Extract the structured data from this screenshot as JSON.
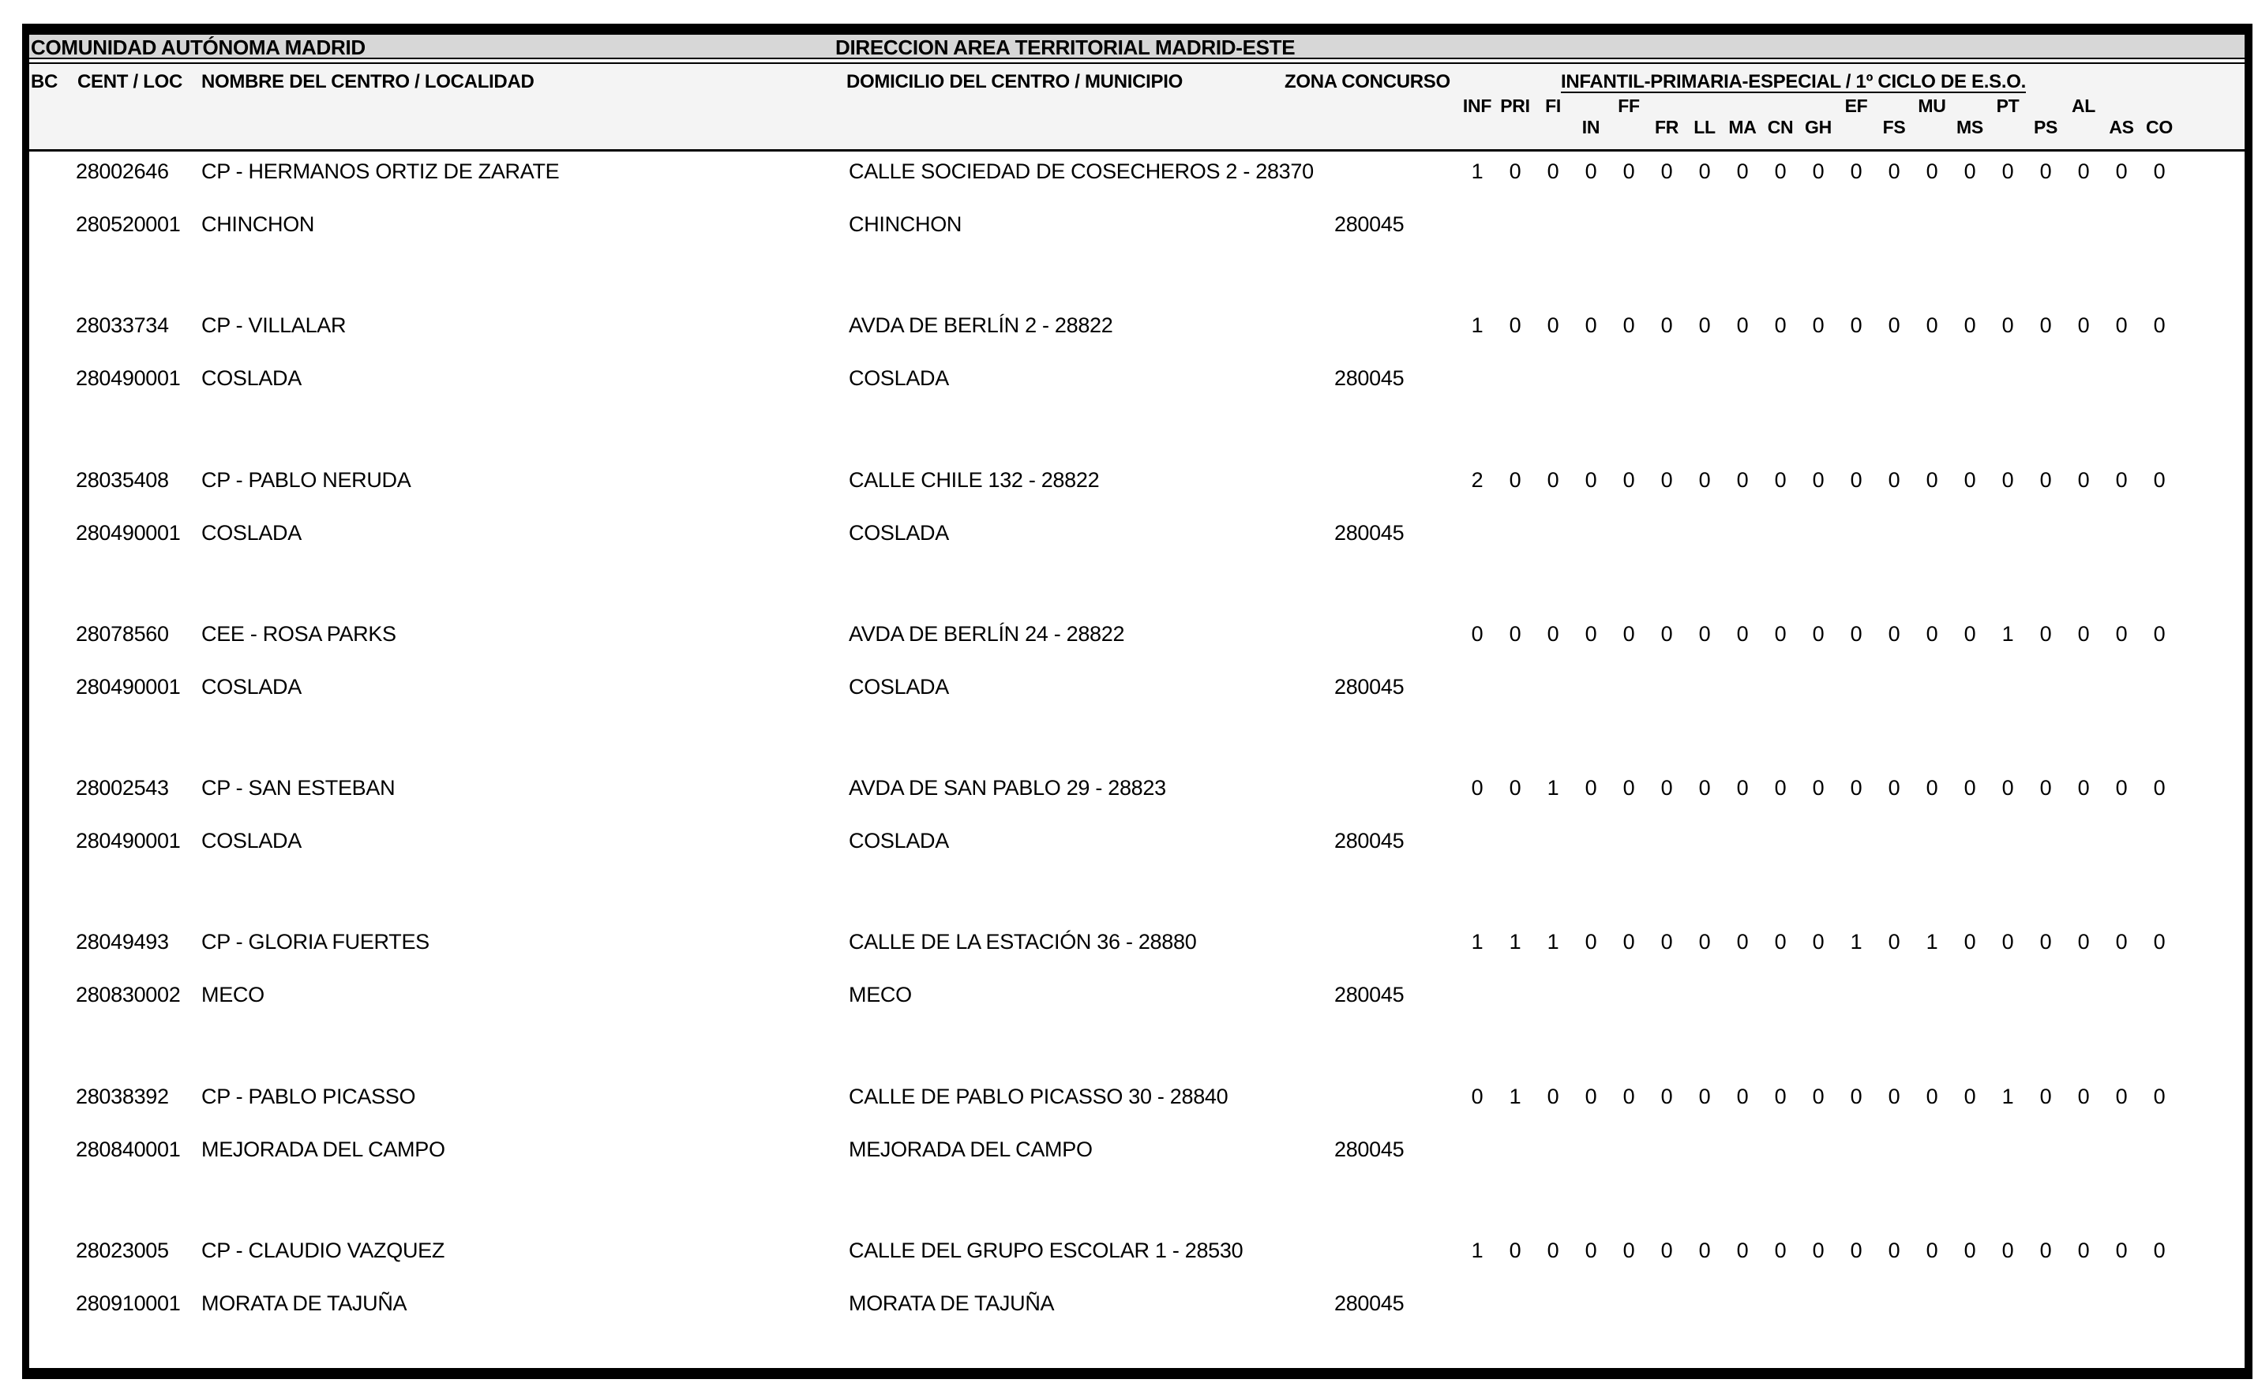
{
  "page": {
    "region_title": "COMUNIDAD AUTÓNOMA MADRID",
    "direction_title": "DIRECCION AREA TERRITORIAL MADRID-ESTE"
  },
  "table": {
    "col_headers": {
      "bc": "BC",
      "cent_loc": "CENT / LOC",
      "nombre": "NOMBRE DEL CENTRO / LOCALIDAD",
      "domicilio": "DOMICILIO DEL CENTRO / MUNICIPIO",
      "zona": "ZONA CONCURSO",
      "group": "INFANTIL-PRIMARIA-ESPECIAL / 1º CICLO DE E.S.O."
    },
    "subject_columns": [
      {
        "code": "INF",
        "row": "upper"
      },
      {
        "code": "PRI",
        "row": "upper"
      },
      {
        "code": "FI",
        "row": "upper"
      },
      {
        "code": "IN",
        "row": "lower"
      },
      {
        "code": "FF",
        "row": "upper"
      },
      {
        "code": "FR",
        "row": "lower"
      },
      {
        "code": "LL",
        "row": "lower"
      },
      {
        "code": "MA",
        "row": "lower"
      },
      {
        "code": "CN",
        "row": "lower"
      },
      {
        "code": "GH",
        "row": "lower"
      },
      {
        "code": "EF",
        "row": "upper"
      },
      {
        "code": "FS",
        "row": "lower"
      },
      {
        "code": "MU",
        "row": "upper"
      },
      {
        "code": "MS",
        "row": "lower"
      },
      {
        "code": "PT",
        "row": "upper"
      },
      {
        "code": "PS",
        "row": "lower"
      },
      {
        "code": "AL",
        "row": "upper"
      },
      {
        "code": "AS",
        "row": "lower"
      },
      {
        "code": "CO",
        "row": "lower"
      }
    ],
    "entries": [
      {
        "cent": "28002646",
        "name": "CP - HERMANOS ORTIZ DE ZARATE",
        "address": "CALLE SOCIEDAD DE COSECHEROS 2 - 28370",
        "loc": "280520001",
        "locality": "CHINCHON",
        "municipality": "CHINCHON",
        "zona": "280045",
        "values": [
          1,
          0,
          0,
          0,
          0,
          0,
          0,
          0,
          0,
          0,
          0,
          0,
          0,
          0,
          0,
          0,
          0,
          0,
          0
        ]
      },
      {
        "cent": "28033734",
        "name": "CP - VILLALAR",
        "address": "AVDA DE BERLÍN 2 - 28822",
        "loc": "280490001",
        "locality": "COSLADA",
        "municipality": "COSLADA",
        "zona": "280045",
        "values": [
          1,
          0,
          0,
          0,
          0,
          0,
          0,
          0,
          0,
          0,
          0,
          0,
          0,
          0,
          0,
          0,
          0,
          0,
          0
        ]
      },
      {
        "cent": "28035408",
        "name": "CP - PABLO NERUDA",
        "address": "CALLE CHILE 132 - 28822",
        "loc": "280490001",
        "locality": "COSLADA",
        "municipality": "COSLADA",
        "zona": "280045",
        "values": [
          2,
          0,
          0,
          0,
          0,
          0,
          0,
          0,
          0,
          0,
          0,
          0,
          0,
          0,
          0,
          0,
          0,
          0,
          0
        ]
      },
      {
        "cent": "28078560",
        "name": "CEE - ROSA PARKS",
        "address": "AVDA DE BERLÍN 24 - 28822",
        "loc": "280490001",
        "locality": "COSLADA",
        "municipality": "COSLADA",
        "zona": "280045",
        "values": [
          0,
          0,
          0,
          0,
          0,
          0,
          0,
          0,
          0,
          0,
          0,
          0,
          0,
          0,
          1,
          0,
          0,
          0,
          0
        ]
      },
      {
        "cent": "28002543",
        "name": "CP - SAN ESTEBAN",
        "address": "AVDA DE SAN PABLO 29 - 28823",
        "loc": "280490001",
        "locality": "COSLADA",
        "municipality": "COSLADA",
        "zona": "280045",
        "values": [
          0,
          0,
          1,
          0,
          0,
          0,
          0,
          0,
          0,
          0,
          0,
          0,
          0,
          0,
          0,
          0,
          0,
          0,
          0
        ]
      },
      {
        "cent": "28049493",
        "name": "CP - GLORIA FUERTES",
        "address": "CALLE DE LA ESTACIÓN 36 - 28880",
        "loc": "280830002",
        "locality": "MECO",
        "municipality": "MECO",
        "zona": "280045",
        "values": [
          1,
          1,
          1,
          0,
          0,
          0,
          0,
          0,
          0,
          0,
          1,
          0,
          1,
          0,
          0,
          0,
          0,
          0,
          0
        ]
      },
      {
        "cent": "28038392",
        "name": "CP - PABLO PICASSO",
        "address": "CALLE DE PABLO PICASSO 30 - 28840",
        "loc": "280840001",
        "locality": "MEJORADA DEL CAMPO",
        "municipality": "MEJORADA DEL CAMPO",
        "zona": "280045",
        "values": [
          0,
          1,
          0,
          0,
          0,
          0,
          0,
          0,
          0,
          0,
          0,
          0,
          0,
          0,
          1,
          0,
          0,
          0,
          0
        ]
      },
      {
        "cent": "28023005",
        "name": "CP - CLAUDIO VAZQUEZ",
        "address": "CALLE DEL GRUPO ESCOLAR 1 - 28530",
        "loc": "280910001",
        "locality": "MORATA DE TAJUÑA",
        "municipality": "MORATA DE TAJUÑA",
        "zona": "280045",
        "values": [
          1,
          0,
          0,
          0,
          0,
          0,
          0,
          0,
          0,
          0,
          0,
          0,
          0,
          0,
          0,
          0,
          0,
          0,
          0
        ]
      }
    ]
  }
}
